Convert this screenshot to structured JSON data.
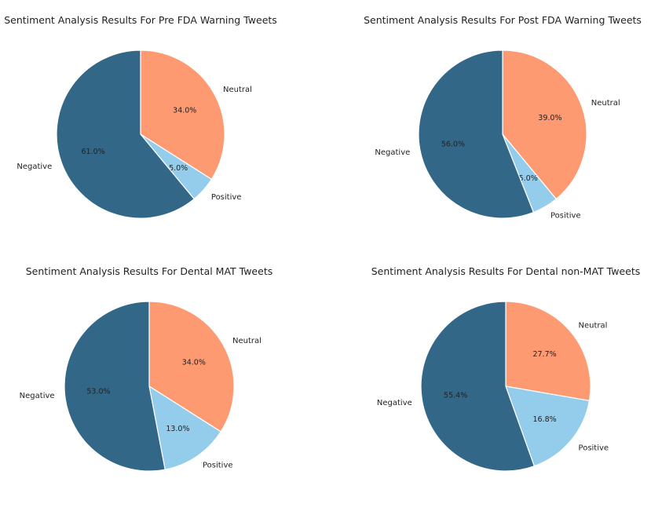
{
  "colors": {
    "Negative": "#336788",
    "Neutral": "#fe9a72",
    "Positive": "#94cdeb",
    "slice_edge": "#ffffff",
    "text": "#222222"
  },
  "chart_data": [
    {
      "type": "pie",
      "title": "Sentiment Analysis Results For Pre FDA Warning Tweets",
      "categories": [
        "Neutral",
        "Positive",
        "Negative"
      ],
      "values": [
        34.0,
        5.0,
        61.0
      ],
      "value_labels": [
        "34.0%",
        "5.0%",
        "61.0%"
      ],
      "start_angle": "top, clockwise"
    },
    {
      "type": "pie",
      "title": "Sentiment Analysis Results For Post FDA Warning Tweets",
      "categories": [
        "Neutral",
        "Positive",
        "Negative"
      ],
      "values": [
        39.0,
        5.0,
        56.0
      ],
      "value_labels": [
        "39.0%",
        "5.0%",
        "56.0%"
      ],
      "start_angle": "top, clockwise"
    },
    {
      "type": "pie",
      "title": "Sentiment Analysis Results For Dental MAT Tweets",
      "categories": [
        "Neutral",
        "Positive",
        "Negative"
      ],
      "values": [
        34.0,
        13.0,
        53.0
      ],
      "value_labels": [
        "34.0%",
        "13.0%",
        "53.0%"
      ],
      "start_angle": "top, clockwise"
    },
    {
      "type": "pie",
      "title": "Sentiment Analysis Results For Dental non-MAT Tweets",
      "categories": [
        "Neutral",
        "Positive",
        "Negative"
      ],
      "values": [
        27.7,
        16.8,
        55.4
      ],
      "value_labels": [
        "27.7%",
        "16.8%",
        "55.4%"
      ],
      "start_angle": "top, clockwise"
    }
  ]
}
